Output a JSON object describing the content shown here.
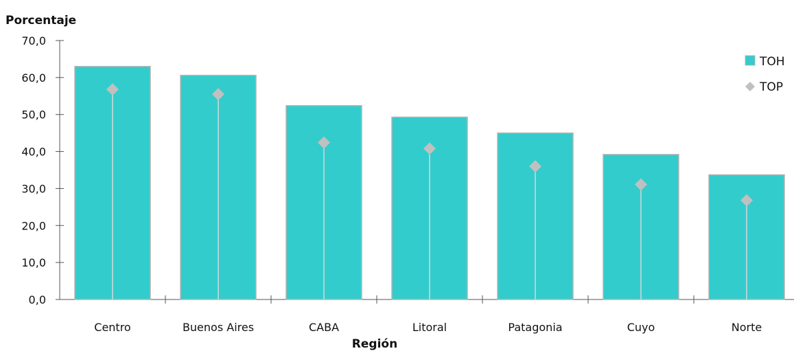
{
  "chart_data": {
    "type": "bar",
    "ylabel": "Porcentaje",
    "xlabel": "Región",
    "categories": [
      "Centro",
      "Buenos Aires",
      "CABA",
      "Litoral",
      "Patagonia",
      "Cuyo",
      "Norte"
    ],
    "series": [
      {
        "name": "TOH",
        "kind": "bar",
        "values": [
          63.0,
          60.6,
          52.4,
          49.3,
          45.0,
          39.2,
          33.7
        ]
      },
      {
        "name": "TOP",
        "kind": "marker",
        "marker": "diamond",
        "values": [
          56.8,
          55.5,
          42.4,
          40.8,
          36.0,
          31.1,
          26.8
        ]
      }
    ],
    "ylim": [
      0,
      70
    ],
    "yticks": [
      "0,0",
      "10,0",
      "20,0",
      "30,0",
      "40,0",
      "50,0",
      "60,0",
      "70,0"
    ],
    "legend": "top-right",
    "grid": false,
    "colors": {
      "TOH": "#33cccc",
      "TOP": "#c0c0c0",
      "bar_outline": "#b4b4b4",
      "axis": "#555555"
    }
  }
}
